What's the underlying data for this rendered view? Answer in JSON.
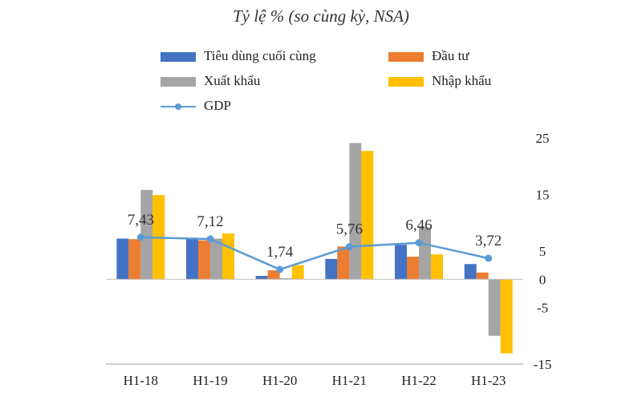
{
  "chart_data": {
    "type": "bar",
    "title": "Tỷ lệ % (so cùng kỳ, NSA)",
    "categories": [
      "H1-18",
      "H1-19",
      "H1-20",
      "H1-21",
      "H1-22",
      "H1-23"
    ],
    "series": [
      {
        "name": "Tiêu dùng cuối cùng",
        "color": "#4472c4",
        "values": [
          7.2,
          7.2,
          0.6,
          3.6,
          6.1,
          2.7
        ]
      },
      {
        "name": "Đầu tư",
        "color": "#ed7d31",
        "values": [
          7.1,
          6.9,
          1.6,
          5.8,
          4.0,
          1.2
        ]
      },
      {
        "name": "Xuất khẩu",
        "color": "#a5a5a5",
        "values": [
          15.8,
          7.2,
          0.2,
          24.1,
          9.2,
          -10.0
        ]
      },
      {
        "name": "Nhập khẩu",
        "color": "#ffc000",
        "values": [
          14.9,
          8.1,
          2.5,
          22.7,
          4.4,
          -13.1
        ]
      }
    ],
    "line": {
      "name": "GDP",
      "color": "#5b9bd5",
      "values": [
        7.43,
        7.12,
        1.74,
        5.76,
        6.46,
        3.72
      ],
      "labels": [
        "7,43",
        "7,12",
        "1,74",
        "5,76",
        "6,46",
        "3,72"
      ]
    },
    "ylim": [
      -15,
      25
    ],
    "yticks": [
      25,
      15,
      5,
      0,
      -5,
      -15
    ],
    "ytick_labels": [
      "25",
      "15",
      "5",
      "0",
      "-5",
      "-15"
    ],
    "y_axis_side": "right",
    "grid": false,
    "legend_position": "top"
  }
}
